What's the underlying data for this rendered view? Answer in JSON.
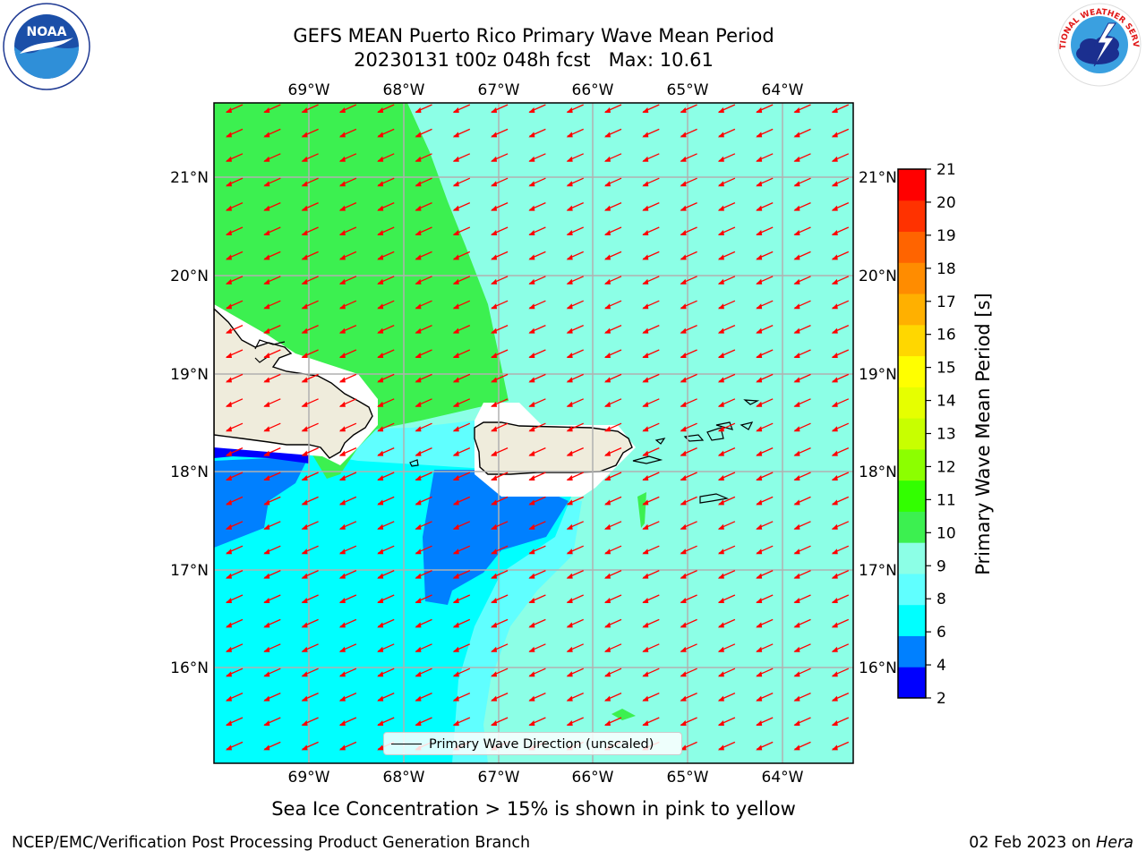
{
  "title": {
    "line1": "GEFS MEAN Puerto Rico Primary Wave Mean Period",
    "line2": "20230131 t00z 048h fcst   Max: 10.61"
  },
  "map": {
    "lon_labels": [
      "69°W",
      "68°W",
      "67°W",
      "66°W",
      "65°W",
      "64°W"
    ],
    "lat_labels": [
      "21°N",
      "20°N",
      "19°N",
      "18°N",
      "17°N",
      "16°N"
    ],
    "legend_label": "Primary Wave Direction (unscaled)",
    "arrow_color": "#ff0000",
    "land_color": "#efecdc",
    "grid_color": "#b0b0b0"
  },
  "colorbar": {
    "label": "Primary Wave Mean Period [s]",
    "tick_labels": [
      "2",
      "4",
      "6",
      "8",
      "9",
      "10",
      "11",
      "12",
      "13",
      "14",
      "15",
      "16",
      "17",
      "18",
      "19",
      "20",
      "21"
    ],
    "colors": [
      "#0000ff",
      "#0080ff",
      "#00ffff",
      "#60ffff",
      "#8cffe6",
      "#3cf050",
      "#32ff00",
      "#8cff00",
      "#c8ff00",
      "#e6ff00",
      "#ffff00",
      "#ffd700",
      "#ffb000",
      "#ff8c00",
      "#ff6400",
      "#ff3200",
      "#ff0000"
    ]
  },
  "footer": {
    "note": "Sea Ice Concentration > 15% is shown in pink to yellow",
    "left": "NCEP/EMC/Verification Post Processing Product Generation Branch",
    "right_date": "02 Feb 2023 on ",
    "right_host": "Hera"
  },
  "logos": {
    "noaa_text": "NOAA",
    "nws_text": "NATIONAL WEATHER SERVICE"
  }
}
